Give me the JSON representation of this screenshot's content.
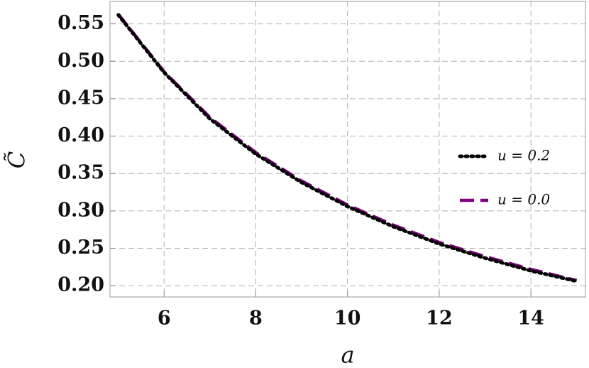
{
  "chart_data": {
    "type": "line",
    "x_label": "a",
    "y_label": "C̃",
    "x": [
      5,
      6,
      7,
      8,
      9,
      10,
      11,
      12,
      13,
      14,
      15
    ],
    "series": [
      {
        "name": "u = 0.2",
        "color": "#000000",
        "dash": "dotted",
        "values": [
          0.562,
          0.485,
          0.423,
          0.376,
          0.338,
          0.306,
          0.279,
          0.256,
          0.237,
          0.22,
          0.206
        ]
      },
      {
        "name": "u = 0.0",
        "color": "#800080",
        "dash": "dashed",
        "values": [
          0.563,
          0.486,
          0.425,
          0.378,
          0.34,
          0.308,
          0.281,
          0.258,
          0.239,
          0.222,
          0.207
        ]
      }
    ],
    "xlim": [
      4.82,
      15.19
    ],
    "ylim": [
      0.185,
      0.58
    ],
    "xticks": [
      6,
      8,
      10,
      12,
      14
    ],
    "yticks": [
      {
        "value": 0.2,
        "label": "0.20"
      },
      0.25,
      {
        "value": 0.3,
        "label": "0.30"
      },
      0.35,
      {
        "value": 0.4,
        "label": "0.40"
      },
      0.45,
      {
        "value": 0.5,
        "label": "0.50"
      },
      0.55
    ],
    "grid": true,
    "legend": "right"
  }
}
